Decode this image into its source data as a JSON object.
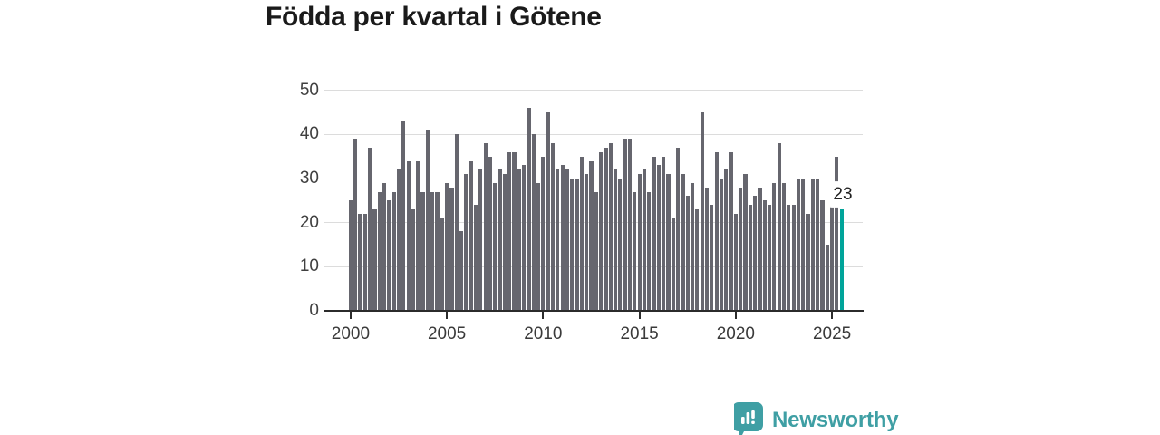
{
  "title": "Födda per kvartal i Götene",
  "chart_data": {
    "type": "bar",
    "title": "Födda per kvartal i Götene",
    "xlabel": "",
    "ylabel": "",
    "ylim": [
      0,
      52
    ],
    "yticks": [
      "0",
      "10",
      "20",
      "30",
      "40",
      "50"
    ],
    "xticks": [
      "2000",
      "2005",
      "2010",
      "2015",
      "2020",
      "2025"
    ],
    "grid": true,
    "legend": "none",
    "categories": [
      "2000Q1",
      "2000Q2",
      "2000Q3",
      "2000Q4",
      "2001Q1",
      "2001Q2",
      "2001Q3",
      "2001Q4",
      "2002Q1",
      "2002Q2",
      "2002Q3",
      "2002Q4",
      "2003Q1",
      "2003Q2",
      "2003Q3",
      "2003Q4",
      "2004Q1",
      "2004Q2",
      "2004Q3",
      "2004Q4",
      "2005Q1",
      "2005Q2",
      "2005Q3",
      "2005Q4",
      "2006Q1",
      "2006Q2",
      "2006Q3",
      "2006Q4",
      "2007Q1",
      "2007Q2",
      "2007Q3",
      "2007Q4",
      "2008Q1",
      "2008Q2",
      "2008Q3",
      "2008Q4",
      "2009Q1",
      "2009Q2",
      "2009Q3",
      "2009Q4",
      "2010Q1",
      "2010Q2",
      "2010Q3",
      "2010Q4",
      "2011Q1",
      "2011Q2",
      "2011Q3",
      "2011Q4",
      "2012Q1",
      "2012Q2",
      "2012Q3",
      "2012Q4",
      "2013Q1",
      "2013Q2",
      "2013Q3",
      "2013Q4",
      "2014Q1",
      "2014Q2",
      "2014Q3",
      "2014Q4",
      "2015Q1",
      "2015Q2",
      "2015Q3",
      "2015Q4",
      "2016Q1",
      "2016Q2",
      "2016Q3",
      "2016Q4",
      "2017Q1",
      "2017Q2",
      "2017Q3",
      "2017Q4",
      "2018Q1",
      "2018Q2",
      "2018Q3",
      "2018Q4",
      "2019Q1",
      "2019Q2",
      "2019Q3",
      "2019Q4",
      "2020Q1",
      "2020Q2",
      "2020Q3",
      "2020Q4",
      "2021Q1",
      "2021Q2",
      "2021Q3",
      "2021Q4",
      "2022Q1",
      "2022Q2",
      "2022Q3",
      "2022Q4",
      "2023Q1",
      "2023Q2",
      "2023Q3",
      "2023Q4",
      "2024Q1",
      "2024Q2",
      "2024Q3",
      "2024Q4",
      "2025Q1",
      "2025Q2",
      "2025Q3"
    ],
    "series": [
      {
        "name": "Födda per kvartal",
        "values": [
          25,
          39,
          22,
          22,
          37,
          23,
          27,
          29,
          25,
          27,
          32,
          43,
          34,
          23,
          34,
          27,
          41,
          27,
          27,
          21,
          29,
          28,
          40,
          18,
          31,
          34,
          24,
          32,
          38,
          35,
          29,
          32,
          31,
          36,
          36,
          32,
          33,
          46,
          40,
          29,
          35,
          45,
          38,
          32,
          33,
          32,
          30,
          30,
          35,
          31,
          34,
          27,
          36,
          37,
          38,
          32,
          30,
          39,
          39,
          27,
          31,
          32,
          27,
          35,
          33,
          35,
          31,
          21,
          37,
          31,
          26,
          29,
          23,
          45,
          28,
          24,
          36,
          30,
          32,
          36,
          22,
          28,
          31,
          24,
          26,
          28,
          25,
          24,
          29,
          38,
          29,
          24,
          24,
          30,
          30,
          22,
          30,
          30,
          25,
          15,
          29,
          35,
          23
        ]
      }
    ],
    "highlight": {
      "index": 102,
      "category": "2025Q3",
      "value": 23,
      "label": "23"
    },
    "colors": {
      "bar": "#66666e",
      "highlight": "#00a49a",
      "grid": "#dcdcdc",
      "axis": "#2b2b2b",
      "tick_text": "#3a3a3a"
    }
  },
  "annotation": {
    "label": "23"
  },
  "footer": {
    "brand": "Newsworthy",
    "brand_color": "#3f9fa4",
    "logo_icon": "newsworthy-speech-bubble-barchart-icon"
  }
}
